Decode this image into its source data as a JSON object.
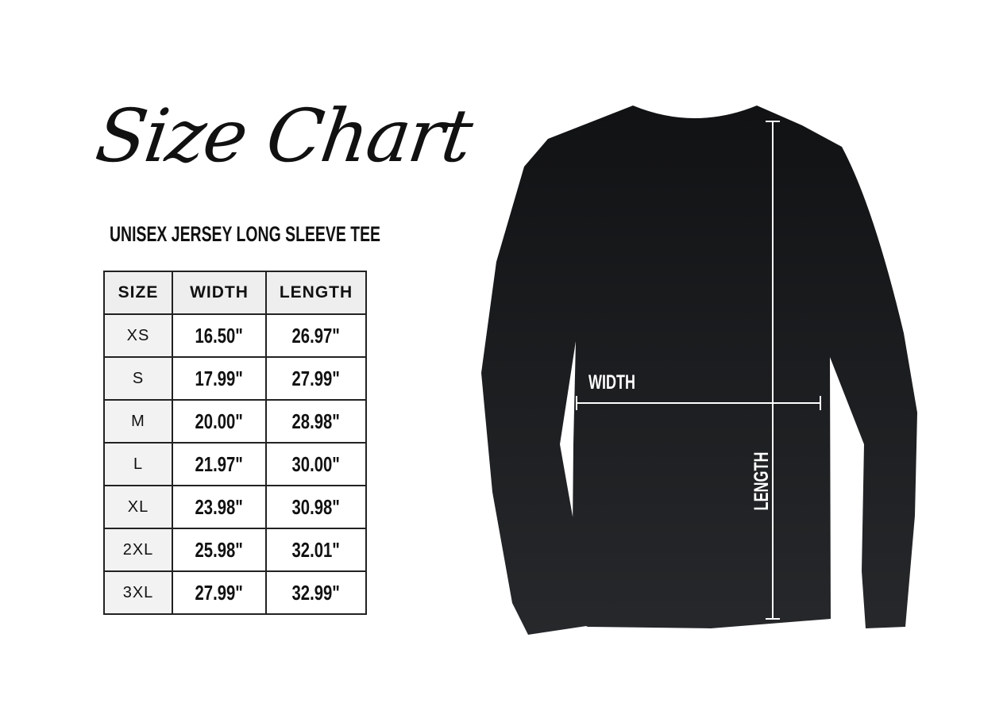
{
  "title": "Size Chart",
  "subtitle": "UNISEX JERSEY LONG SLEEVE TEE",
  "table": {
    "headers": [
      "SIZE",
      "WIDTH",
      "LENGTH"
    ],
    "rows": [
      [
        "XS",
        "16.50\"",
        "26.97\""
      ],
      [
        "S",
        "17.99\"",
        "27.99\""
      ],
      [
        "M",
        "20.00\"",
        "28.98\""
      ],
      [
        "L",
        "21.97\"",
        "30.00\""
      ],
      [
        "XL",
        "23.98\"",
        "30.98\""
      ],
      [
        "2XL",
        "25.98\"",
        "32.01\""
      ],
      [
        "3XL",
        "27.99\"",
        "32.99\""
      ]
    ]
  },
  "diagram": {
    "width_label": "WIDTH",
    "length_label": "LENGTH",
    "shirt_color": "#1c1e20",
    "line_color": "#ffffff"
  }
}
